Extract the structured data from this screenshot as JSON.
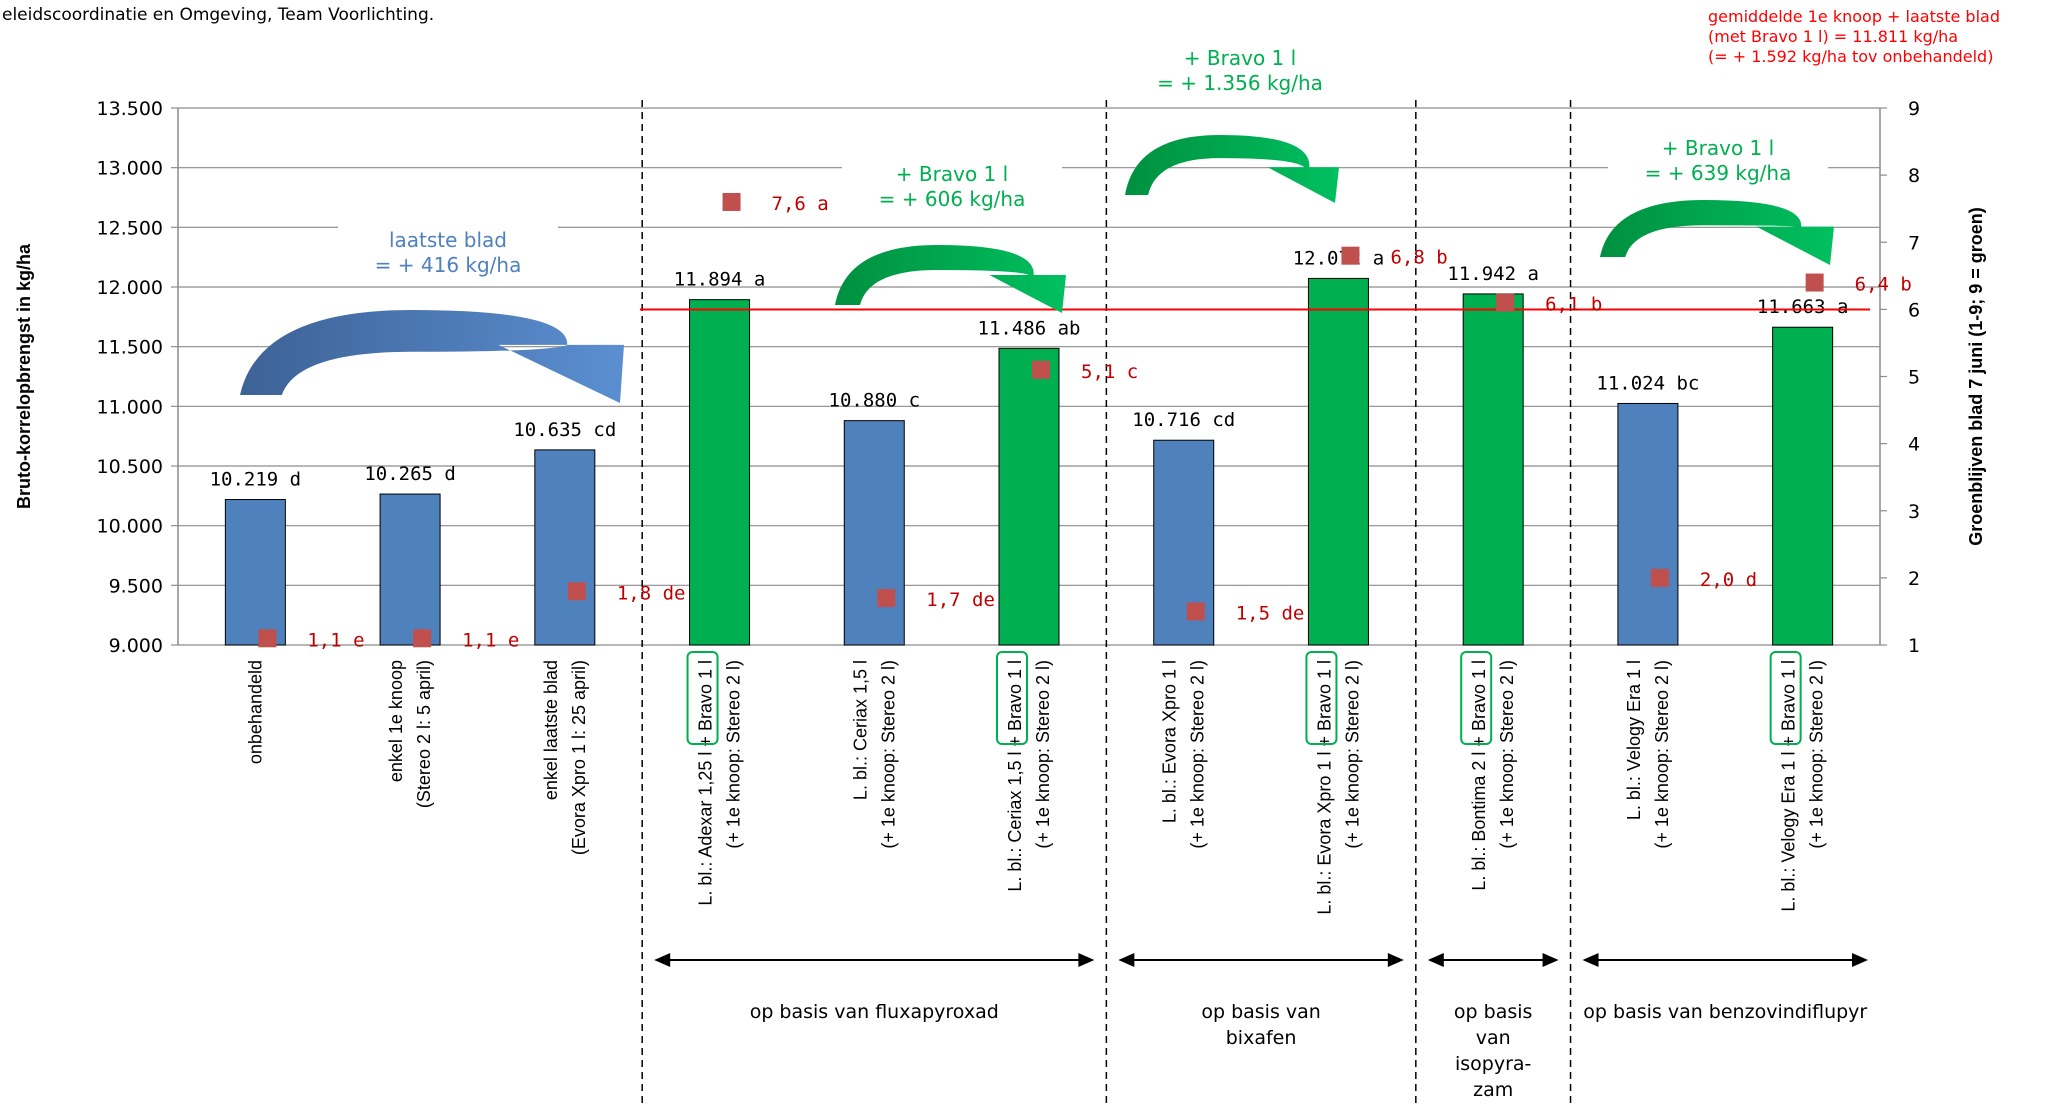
{
  "header_text": "eleidscoordinatie en Omgeving, Team Voorlichting.",
  "red_note": [
    "gemiddelde 1e knoop + laatste blad",
    "(met Bravo 1 l) = 11.811 kg/ha",
    "(= + 1.592 kg/ha tov onbehandeld)"
  ],
  "colors": {
    "blue": "#4f81bd",
    "green": "#00b050",
    "marker": "#c0504d",
    "red_line": "#ff0000",
    "label_red": "#c00000"
  },
  "chart_data": {
    "type": "bar",
    "ylabel": "Bruto-korrelopbrengst in kg/ha",
    "y2label": "Groenblijven  blad 7 juni (1-9; 9 = groen)",
    "ylim": [
      9000,
      13500
    ],
    "y2lim": [
      1,
      9
    ],
    "yticks": [
      "9.000",
      "9.500",
      "10.000",
      "10.500",
      "11.000",
      "11.500",
      "12.000",
      "12.500",
      "13.000",
      "13.500"
    ],
    "y2ticks": [
      "1",
      "2",
      "3",
      "4",
      "5",
      "6",
      "7",
      "8",
      "9"
    ],
    "reference_line": 11811,
    "categories": [
      [
        "onbehandeld"
      ],
      [
        "enkel 1e knoop",
        "(Stereo 2 l: 5 april)"
      ],
      [
        "enkel laatste blad",
        "(Evora Xpro 1 l: 25 april)"
      ],
      [
        "L. bl.: Adexar 1,25 l + Bravo 1 l",
        "(+ 1e knoop: Stereo 2 l)"
      ],
      [
        "L. bl.: Ceriax 1,5 l",
        "(+ 1e knoop: Stereo 2 l)"
      ],
      [
        "L. bl.: Ceriax 1,5 l + Bravo 1 l",
        "(+ 1e knoop: Stereo 2 l)"
      ],
      [
        "L. bl.: Evora Xpro 1 l",
        "(+ 1e knoop: Stereo 2 l)"
      ],
      [
        "L. bl.: Evora Xpro 1 l + Bravo 1 l",
        "(+ 1e knoop: Stereo 2 l)"
      ],
      [
        "L. bl.: Bontima 2 l + Bravo 1 l",
        "(+ 1e knoop: Stereo 2 l)"
      ],
      [
        "L. bl.: Velogy Era 1 l",
        "(+ 1e knoop: Stereo 2 l)"
      ],
      [
        "L. bl.: Velogy Era 1 l + Bravo 1 l",
        "(+ 1e knoop: Stereo 2 l)"
      ]
    ],
    "series": [
      {
        "name": "Bruto-korrelopbrengst",
        "type": "bar",
        "values": [
          10219,
          10265,
          10635,
          11894,
          10880,
          11486,
          10716,
          12072,
          11942,
          11024,
          11663
        ],
        "labels": [
          "10.219 d",
          "10.265 d",
          "10.635 cd",
          "11.894 a",
          "10.880 c",
          "11.486 ab",
          "10.716 cd",
          "12.072 a",
          "11.942 a",
          "11.024 bc",
          "11.663 a"
        ],
        "colors": [
          "blue",
          "blue",
          "blue",
          "green",
          "blue",
          "green",
          "blue",
          "green",
          "green",
          "blue",
          "green"
        ]
      },
      {
        "name": "Groenblijven",
        "type": "scatter",
        "axis": "right",
        "values": [
          1.1,
          1.1,
          1.8,
          7.6,
          1.7,
          5.1,
          1.5,
          6.8,
          6.1,
          2.0,
          6.4
        ],
        "labels": [
          "1,1 e",
          "1,1 e",
          "1,8 de",
          "7,6 a",
          "1,7 de",
          "5,1 c",
          "1,5 de",
          "6,8 b",
          "6,1 b",
          "2,0 d",
          "6,4 b"
        ]
      }
    ],
    "annotations": [
      {
        "lines": [
          "laatste blad",
          "= + 416 kg/ha"
        ],
        "color": "#4f81bd"
      },
      {
        "lines": [
          "+ Bravo 1 l",
          "= + 606 kg/ha"
        ],
        "color": "#00b050"
      },
      {
        "lines": [
          "+ Bravo 1 l",
          "= + 1.356 kg/ha"
        ],
        "color": "#00b050"
      },
      {
        "lines": [
          "+ Bravo 1 l",
          "= + 639 kg/ha"
        ],
        "color": "#00b050"
      }
    ],
    "groups": [
      {
        "lines": [
          "op basis van fluxapyroxad"
        ]
      },
      {
        "lines": [
          "op basis van",
          "bixafen"
        ]
      },
      {
        "lines": [
          "op basis",
          "van",
          "isopyra-",
          "zam"
        ]
      },
      {
        "lines": [
          "op basis van benzovindiflupyr"
        ]
      }
    ]
  }
}
